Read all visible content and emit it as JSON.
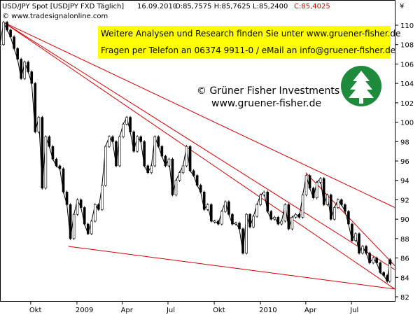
{
  "header": {
    "symbol": "USD/JPY Spot [USDJPY FXD  Täglich]",
    "date": "16.09.2010",
    "ohlc": "O:85,7575 H:85,7625 L:85,2400",
    "close": "C:85,4025"
  },
  "source": "© www.tradesignalonline.com",
  "currency_symbol": "¥",
  "info_box": {
    "line1": "Weitere Analysen und Research finden Sie unter www.gruener-fisher.de",
    "line2": "Fragen per Telefon an 06374 9911-0 / eMail an info@gruener-fisher.de"
  },
  "brand": {
    "name": "© Grüner Fisher Investments",
    "url": "www.gruener-fisher.de",
    "logo": "tree-logo"
  },
  "colors": {
    "trendline": "#d40000",
    "info_box_bg": "#ffff00",
    "logo_green": "#1e8a3c",
    "candle_up": "#ffffff",
    "candle_down": "#000000"
  },
  "chart_data": {
    "type": "line",
    "ylim": [
      82,
      111
    ],
    "yticks": [
      82,
      84,
      86,
      88,
      90,
      92,
      94,
      96,
      98,
      100,
      102,
      104,
      106,
      108,
      110
    ],
    "x_tick_labels": [
      "Okt",
      "2009",
      "Apr",
      "Jul",
      "Okt",
      "2010",
      "Apr",
      "Jul"
    ],
    "x_tick_dates": [
      "2008-10-01",
      "2009-01-01",
      "2009-04-01",
      "2009-07-01",
      "2009-10-01",
      "2010-01-01",
      "2010-04-01",
      "2010-07-01"
    ],
    "x_range": [
      "2008-08-01",
      "2010-09-25"
    ],
    "series": [
      {
        "values": [
          {
            "x": "2008-08-01",
            "y": 108.0
          },
          {
            "x": "2008-08-08",
            "y": 110.3
          },
          {
            "x": "2008-08-15",
            "y": 109.5
          },
          {
            "x": "2008-08-22",
            "y": 108.8
          },
          {
            "x": "2008-08-29",
            "y": 107.6
          },
          {
            "x": "2008-09-05",
            "y": 106.5
          },
          {
            "x": "2008-09-12",
            "y": 104.5
          },
          {
            "x": "2008-09-19",
            "y": 106.2
          },
          {
            "x": "2008-09-26",
            "y": 105.2
          },
          {
            "x": "2008-10-03",
            "y": 104.0
          },
          {
            "x": "2008-10-10",
            "y": 99.0
          },
          {
            "x": "2008-10-17",
            "y": 100.5
          },
          {
            "x": "2008-10-24",
            "y": 93.2
          },
          {
            "x": "2008-10-31",
            "y": 98.5
          },
          {
            "x": "2008-11-07",
            "y": 97.5
          },
          {
            "x": "2008-11-14",
            "y": 96.2
          },
          {
            "x": "2008-11-21",
            "y": 95.5
          },
          {
            "x": "2008-11-28",
            "y": 95.2
          },
          {
            "x": "2008-12-05",
            "y": 92.8
          },
          {
            "x": "2008-12-12",
            "y": 91.5
          },
          {
            "x": "2008-12-19",
            "y": 88.0
          },
          {
            "x": "2008-12-26",
            "y": 90.5
          },
          {
            "x": "2009-01-02",
            "y": 92.0
          },
          {
            "x": "2009-01-09",
            "y": 91.2
          },
          {
            "x": "2009-01-16",
            "y": 89.5
          },
          {
            "x": "2009-01-23",
            "y": 88.5
          },
          {
            "x": "2009-01-30",
            "y": 89.8
          },
          {
            "x": "2009-02-06",
            "y": 91.5
          },
          {
            "x": "2009-02-13",
            "y": 91.0
          },
          {
            "x": "2009-02-20",
            "y": 93.5
          },
          {
            "x": "2009-02-27",
            "y": 97.5
          },
          {
            "x": "2009-03-06",
            "y": 98.5
          },
          {
            "x": "2009-03-13",
            "y": 98.0
          },
          {
            "x": "2009-03-20",
            "y": 95.5
          },
          {
            "x": "2009-03-27",
            "y": 98.5
          },
          {
            "x": "2009-04-03",
            "y": 99.8
          },
          {
            "x": "2009-04-10",
            "y": 100.5
          },
          {
            "x": "2009-04-17",
            "y": 99.0
          },
          {
            "x": "2009-04-24",
            "y": 97.0
          },
          {
            "x": "2009-05-01",
            "y": 98.5
          },
          {
            "x": "2009-05-08",
            "y": 98.0
          },
          {
            "x": "2009-05-15",
            "y": 95.5
          },
          {
            "x": "2009-05-22",
            "y": 94.8
          },
          {
            "x": "2009-05-29",
            "y": 95.5
          },
          {
            "x": "2009-06-05",
            "y": 98.5
          },
          {
            "x": "2009-06-12",
            "y": 97.5
          },
          {
            "x": "2009-06-19",
            "y": 96.5
          },
          {
            "x": "2009-06-26",
            "y": 95.5
          },
          {
            "x": "2009-07-03",
            "y": 96.2
          },
          {
            "x": "2009-07-10",
            "y": 92.5
          },
          {
            "x": "2009-07-17",
            "y": 94.0
          },
          {
            "x": "2009-07-24",
            "y": 94.8
          },
          {
            "x": "2009-07-31",
            "y": 95.5
          },
          {
            "x": "2009-08-07",
            "y": 97.5
          },
          {
            "x": "2009-08-14",
            "y": 95.0
          },
          {
            "x": "2009-08-21",
            "y": 94.5
          },
          {
            "x": "2009-08-28",
            "y": 93.5
          },
          {
            "x": "2009-09-04",
            "y": 92.8
          },
          {
            "x": "2009-09-11",
            "y": 91.0
          },
          {
            "x": "2009-09-18",
            "y": 91.5
          },
          {
            "x": "2009-09-25",
            "y": 89.8
          },
          {
            "x": "2009-10-02",
            "y": 89.8
          },
          {
            "x": "2009-10-09",
            "y": 89.5
          },
          {
            "x": "2009-10-16",
            "y": 90.8
          },
          {
            "x": "2009-10-23",
            "y": 91.8
          },
          {
            "x": "2009-10-30",
            "y": 90.5
          },
          {
            "x": "2009-11-06",
            "y": 89.5
          },
          {
            "x": "2009-11-13",
            "y": 89.6
          },
          {
            "x": "2009-11-20",
            "y": 89.0
          },
          {
            "x": "2009-11-27",
            "y": 86.5
          },
          {
            "x": "2009-12-04",
            "y": 90.5
          },
          {
            "x": "2009-12-11",
            "y": 89.2
          },
          {
            "x": "2009-12-18",
            "y": 90.3
          },
          {
            "x": "2009-12-25",
            "y": 91.5
          },
          {
            "x": "2010-01-01",
            "y": 92.5
          },
          {
            "x": "2010-01-08",
            "y": 92.8
          },
          {
            "x": "2010-01-15",
            "y": 90.8
          },
          {
            "x": "2010-01-22",
            "y": 90.0
          },
          {
            "x": "2010-01-29",
            "y": 90.2
          },
          {
            "x": "2010-02-05",
            "y": 89.5
          },
          {
            "x": "2010-02-12",
            "y": 89.8
          },
          {
            "x": "2010-02-19",
            "y": 91.5
          },
          {
            "x": "2010-02-26",
            "y": 89.0
          },
          {
            "x": "2010-03-05",
            "y": 90.2
          },
          {
            "x": "2010-03-12",
            "y": 90.5
          },
          {
            "x": "2010-03-19",
            "y": 90.2
          },
          {
            "x": "2010-03-26",
            "y": 92.5
          },
          {
            "x": "2010-04-02",
            "y": 94.5
          },
          {
            "x": "2010-04-09",
            "y": 93.2
          },
          {
            "x": "2010-04-16",
            "y": 92.2
          },
          {
            "x": "2010-04-23",
            "y": 93.8
          },
          {
            "x": "2010-04-30",
            "y": 94.2
          },
          {
            "x": "2010-05-07",
            "y": 91.5
          },
          {
            "x": "2010-05-14",
            "y": 92.5
          },
          {
            "x": "2010-05-21",
            "y": 90.0
          },
          {
            "x": "2010-05-28",
            "y": 91.2
          },
          {
            "x": "2010-06-04",
            "y": 92.0
          },
          {
            "x": "2010-06-11",
            "y": 91.5
          },
          {
            "x": "2010-06-18",
            "y": 90.8
          },
          {
            "x": "2010-06-25",
            "y": 89.5
          },
          {
            "x": "2010-07-02",
            "y": 87.8
          },
          {
            "x": "2010-07-09",
            "y": 88.5
          },
          {
            "x": "2010-07-16",
            "y": 86.5
          },
          {
            "x": "2010-07-23",
            "y": 87.2
          },
          {
            "x": "2010-07-30",
            "y": 86.5
          },
          {
            "x": "2010-08-06",
            "y": 85.5
          },
          {
            "x": "2010-08-13",
            "y": 86.0
          },
          {
            "x": "2010-08-20",
            "y": 85.5
          },
          {
            "x": "2010-08-27",
            "y": 84.5
          },
          {
            "x": "2010-09-03",
            "y": 84.2
          },
          {
            "x": "2010-09-10",
            "y": 83.6
          },
          {
            "x": "2010-09-15",
            "y": 85.8
          },
          {
            "x": "2010-09-16",
            "y": 85.4
          }
        ]
      }
    ],
    "trendlines": [
      {
        "from": {
          "x": "2008-08-08",
          "y": 110.3
        },
        "to": {
          "x": "2010-09-25",
          "y": 91.2
        }
      },
      {
        "from": {
          "x": "2008-08-08",
          "y": 110.3
        },
        "to": {
          "x": "2010-09-25",
          "y": 84.8
        }
      },
      {
        "from": {
          "x": "2008-08-08",
          "y": 110.3
        },
        "to": {
          "x": "2010-09-25",
          "y": 82.8
        }
      },
      {
        "from": {
          "x": "2008-12-15",
          "y": 87.2
        },
        "to": {
          "x": "2010-09-25",
          "y": 82.8
        }
      },
      {
        "from": {
          "x": "2010-04-01",
          "y": 94.8
        },
        "to": {
          "x": "2010-09-25",
          "y": 85.2
        }
      }
    ]
  }
}
